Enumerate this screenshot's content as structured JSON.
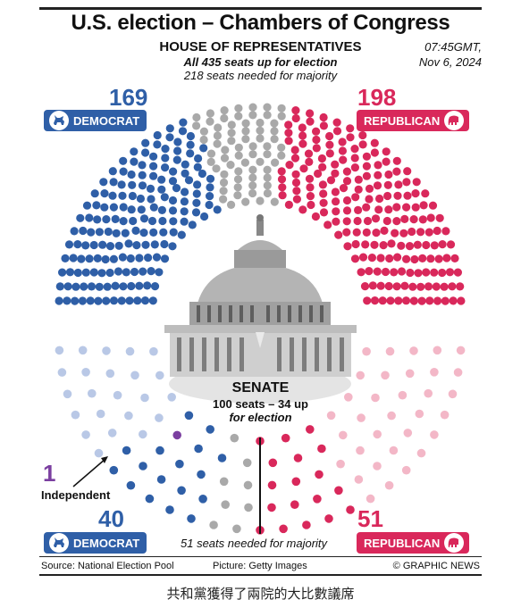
{
  "header": {
    "title": "U.S. election – Chambers of Congress",
    "house_heading": "HOUSE OF REPRESENTATIVES",
    "house_subtitle": "All 435 seats up for election",
    "house_majority": "218 seats needed for majority",
    "time_line1": "07:45GMT,",
    "time_line2": "Nov 6, 2024"
  },
  "senate_text": {
    "heading": "SENATE",
    "line1": "100 seats – 34 up",
    "line2": "for election",
    "majority": "51 seats needed for majority"
  },
  "labels": {
    "democrat": "DEMOCRAT",
    "republican": "REPUBLICAN",
    "independent": "Independent"
  },
  "footer": {
    "source": "Source: National Election Pool",
    "picture": "Picture: Getty Images",
    "credit": "© GRAPHIC NEWS"
  },
  "caption": "共和黨獲得了兩院的大比數議席",
  "colors": {
    "democrat": "#2f5fa7",
    "republican": "#d9285b",
    "undecided": "#a9a9a9",
    "independent": "#7b3fa0",
    "democrat_not_up": "#b9c8e6",
    "republican_not_up": "#f3b7c7"
  },
  "icons": {
    "democrat": "donkey-icon",
    "republican": "elephant-icon",
    "building": "capitol-dome"
  },
  "chart_data": [
    {
      "type": "parliament",
      "chamber": "House of Representatives",
      "total_seats": 435,
      "majority": 218,
      "series": [
        {
          "name": "DEMOCRAT",
          "value": 169
        },
        {
          "name": "",
          "value": 68
        },
        {
          "name": "REPUBLICAN",
          "value": 198
        }
      ]
    },
    {
      "type": "parliament",
      "chamber": "Senate",
      "total_seats": 100,
      "seats_up": 34,
      "majority": 51,
      "series": [
        {
          "name": "Independent",
          "value": 1
        },
        {
          "name": "DEMOCRAT",
          "value": 40
        },
        {
          "name": "",
          "value": 8
        },
        {
          "name": "REPUBLICAN",
          "value": 51
        }
      ]
    }
  ]
}
